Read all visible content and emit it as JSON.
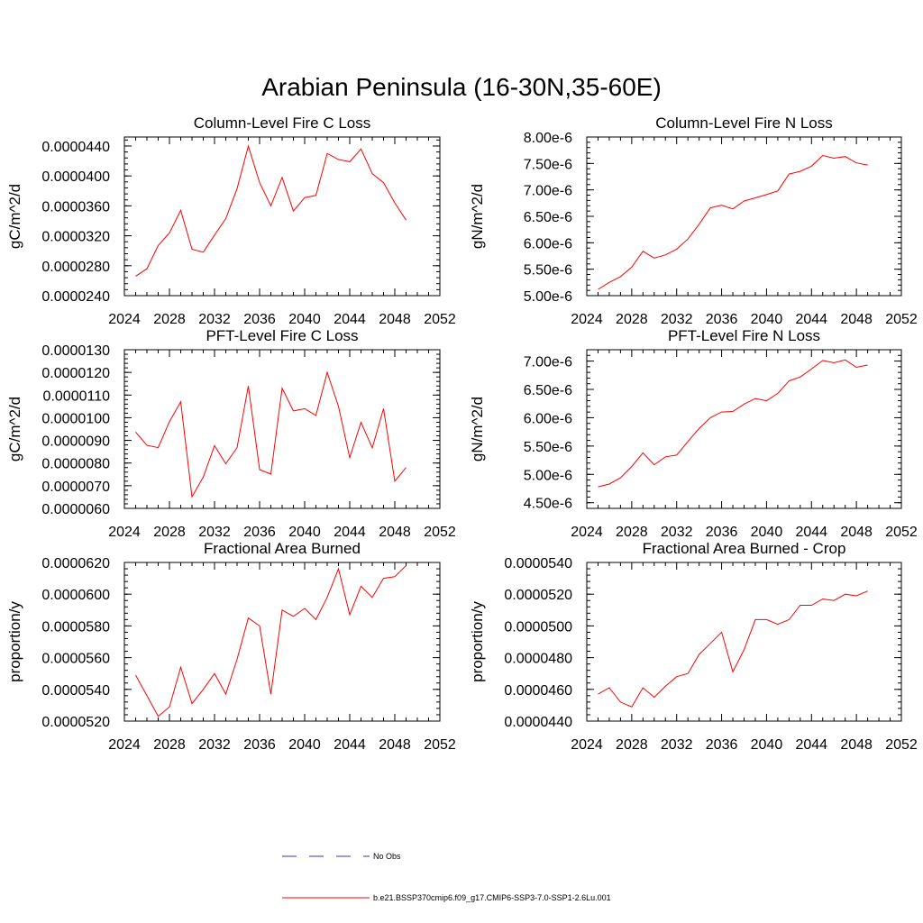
{
  "figure": {
    "title": "Arabian Peninsula (16-30N,35-60E)"
  },
  "colors": {
    "model_line": "#ff0000",
    "obs_line": "#3a3aa8",
    "axis": "#000000"
  },
  "legend": {
    "obs_label": "No Obs",
    "model_label": "b.e21.BSSP370cmip6.f09_g17.CMIP6-SSP3-7.0-SSP1-2.6Lu.001"
  },
  "chart_data": [
    {
      "type": "line",
      "title": "Column-Level Fire C Loss",
      "xlabel": "",
      "ylabel": "gC/m^2/d",
      "xlim": [
        2024,
        2052
      ],
      "ylim": [
        2.4e-05,
        4.52e-05
      ],
      "xticks": [
        2024,
        2028,
        2032,
        2036,
        2040,
        2044,
        2048,
        2052
      ],
      "xtick_labels": [
        "2024",
        "2028",
        "2032",
        "2036",
        "2040",
        "2044",
        "2048",
        "2052"
      ],
      "yticks": [
        2.4e-05,
        2.8e-05,
        3.2e-05,
        3.6e-05,
        4e-05,
        4.4e-05
      ],
      "ytick_labels": [
        "0.0000240",
        "0.0000280",
        "0.0000320",
        "0.0000360",
        "0.0000400",
        "0.0000440"
      ],
      "x": [
        2025,
        2026,
        2027,
        2028,
        2029,
        2030,
        2031,
        2032,
        2033,
        2034,
        2035,
        2036,
        2037,
        2038,
        2039,
        2040,
        2041,
        2042,
        2043,
        2044,
        2045,
        2046,
        2047,
        2048,
        2049
      ],
      "series": [
        {
          "values": [
            2.66e-05,
            2.76e-05,
            3.07e-05,
            3.24e-05,
            3.54e-05,
            3.02e-05,
            2.98e-05,
            3.21e-05,
            3.43e-05,
            3.83e-05,
            4.4e-05,
            3.91e-05,
            3.6e-05,
            3.98e-05,
            3.53e-05,
            3.71e-05,
            3.74e-05,
            4.3e-05,
            4.22e-05,
            4.19e-05,
            4.36e-05,
            4.03e-05,
            3.91e-05,
            3.64e-05,
            3.41e-05
          ]
        }
      ]
    },
    {
      "type": "line",
      "title": "Column-Level Fire N Loss",
      "xlabel": "",
      "ylabel": "gN/m^2/d",
      "xlim": [
        2024,
        2052
      ],
      "ylim": [
        5e-06,
        8e-06
      ],
      "xticks": [
        2024,
        2028,
        2032,
        2036,
        2040,
        2044,
        2048,
        2052
      ],
      "xtick_labels": [
        "2024",
        "2028",
        "2032",
        "2036",
        "2040",
        "2044",
        "2048",
        "2052"
      ],
      "yticks": [
        5e-06,
        5.5e-06,
        6e-06,
        6.5e-06,
        7e-06,
        7.5e-06,
        8e-06
      ],
      "ytick_labels": [
        "5.00e-6",
        "5.50e-6",
        "6.00e-6",
        "6.50e-6",
        "7.00e-6",
        "7.50e-6",
        "8.00e-6"
      ],
      "x": [
        2025,
        2026,
        2027,
        2028,
        2029,
        2030,
        2031,
        2032,
        2033,
        2034,
        2035,
        2036,
        2037,
        2038,
        2039,
        2040,
        2041,
        2042,
        2043,
        2044,
        2045,
        2046,
        2047,
        2048,
        2049
      ],
      "series": [
        {
          "values": [
            5.12e-06,
            5.25e-06,
            5.36e-06,
            5.54e-06,
            5.84e-06,
            5.71e-06,
            5.77e-06,
            5.88e-06,
            6.07e-06,
            6.35e-06,
            6.66e-06,
            6.71e-06,
            6.64e-06,
            6.79e-06,
            6.85e-06,
            6.91e-06,
            6.98e-06,
            7.3e-06,
            7.35e-06,
            7.45e-06,
            7.65e-06,
            7.6e-06,
            7.63e-06,
            7.51e-06,
            7.47e-06
          ]
        }
      ]
    },
    {
      "type": "line",
      "title": "PFT-Level Fire C Loss",
      "xlabel": "",
      "ylabel": "gC/m^2/d",
      "xlim": [
        2024,
        2052
      ],
      "ylim": [
        6e-06,
        1.3e-05
      ],
      "xticks": [
        2024,
        2028,
        2032,
        2036,
        2040,
        2044,
        2048,
        2052
      ],
      "xtick_labels": [
        "2024",
        "2028",
        "2032",
        "2036",
        "2040",
        "2044",
        "2048",
        "2052"
      ],
      "yticks": [
        6e-06,
        7e-06,
        8e-06,
        9e-06,
        1e-05,
        1.1e-05,
        1.2e-05,
        1.3e-05
      ],
      "ytick_labels": [
        "0.0000060",
        "0.0000070",
        "0.0000080",
        "0.0000090",
        "0.0000100",
        "0.0000110",
        "0.0000120",
        "0.0000130"
      ],
      "x": [
        2025,
        2026,
        2027,
        2028,
        2029,
        2030,
        2031,
        2032,
        2033,
        2034,
        2035,
        2036,
        2037,
        2038,
        2039,
        2040,
        2041,
        2042,
        2043,
        2044,
        2045,
        2046,
        2047,
        2048,
        2049
      ],
      "series": [
        {
          "values": [
            9.37e-06,
            8.78e-06,
            8.68e-06,
            9.83e-06,
            1.07e-05,
            6.51e-06,
            7.38e-06,
            8.77e-06,
            7.97e-06,
            8.68e-06,
            1.14e-05,
            7.71e-06,
            7.51e-06,
            1.13e-05,
            1.03e-05,
            1.04e-05,
            1.01e-05,
            1.2e-05,
            1.05e-05,
            8.24e-06,
            9.8e-06,
            8.67e-06,
            1.04e-05,
            7.2e-06,
            7.8e-06
          ]
        }
      ]
    },
    {
      "type": "line",
      "title": "PFT-Level Fire N Loss",
      "xlabel": "",
      "ylabel": "gN/m^2/d",
      "xlim": [
        2024,
        2052
      ],
      "ylim": [
        4.4e-06,
        7.2e-06
      ],
      "xticks": [
        2024,
        2028,
        2032,
        2036,
        2040,
        2044,
        2048,
        2052
      ],
      "xtick_labels": [
        "2024",
        "2028",
        "2032",
        "2036",
        "2040",
        "2044",
        "2048",
        "2052"
      ],
      "yticks": [
        4.5e-06,
        5e-06,
        5.5e-06,
        6e-06,
        6.5e-06,
        7e-06
      ],
      "ytick_labels": [
        "4.50e-6",
        "5.00e-6",
        "5.50e-6",
        "6.00e-6",
        "6.50e-6",
        "7.00e-6"
      ],
      "x": [
        2025,
        2026,
        2027,
        2028,
        2029,
        2030,
        2031,
        2032,
        2033,
        2034,
        2035,
        2036,
        2037,
        2038,
        2039,
        2040,
        2041,
        2042,
        2043,
        2044,
        2045,
        2046,
        2047,
        2048,
        2049
      ],
      "series": [
        {
          "values": [
            4.78e-06,
            4.83e-06,
            4.94e-06,
            5.14e-06,
            5.38e-06,
            5.17e-06,
            5.31e-06,
            5.34e-06,
            5.58e-06,
            5.81e-06,
            6e-06,
            6.1e-06,
            6.11e-06,
            6.24e-06,
            6.34e-06,
            6.3e-06,
            6.43e-06,
            6.65e-06,
            6.72e-06,
            6.86e-06,
            7.01e-06,
            6.97e-06,
            7.02e-06,
            6.89e-06,
            6.93e-06
          ]
        }
      ]
    },
    {
      "type": "line",
      "title": "Fractional Area Burned",
      "xlabel": "",
      "ylabel": "proportion/y",
      "xlim": [
        2024,
        2052
      ],
      "ylim": [
        5.2e-05,
        6.2e-05
      ],
      "xticks": [
        2024,
        2028,
        2032,
        2036,
        2040,
        2044,
        2048,
        2052
      ],
      "xtick_labels": [
        "2024",
        "2028",
        "2032",
        "2036",
        "2040",
        "2044",
        "2048",
        "2052"
      ],
      "yticks": [
        5.2e-05,
        5.4e-05,
        5.6e-05,
        5.8e-05,
        6e-05,
        6.2e-05
      ],
      "ytick_labels": [
        "0.0000520",
        "0.0000540",
        "0.0000560",
        "0.0000580",
        "0.0000600",
        "0.0000620"
      ],
      "x": [
        2025,
        2026,
        2027,
        2028,
        2029,
        2030,
        2031,
        2032,
        2033,
        2034,
        2035,
        2036,
        2037,
        2038,
        2039,
        2040,
        2041,
        2042,
        2043,
        2044,
        2045,
        2046,
        2047,
        2048,
        2049
      ],
      "series": [
        {
          "values": [
            5.49e-05,
            5.36e-05,
            5.23e-05,
            5.29e-05,
            5.54e-05,
            5.31e-05,
            5.4e-05,
            5.5e-05,
            5.37e-05,
            5.59e-05,
            5.85e-05,
            5.8e-05,
            5.37e-05,
            5.9e-05,
            5.86e-05,
            5.91e-05,
            5.84e-05,
            5.98e-05,
            6.16e-05,
            5.87e-05,
            6.05e-05,
            5.98e-05,
            6.1e-05,
            6.11e-05,
            6.18e-05
          ]
        }
      ]
    },
    {
      "type": "line",
      "title": "Fractional Area Burned - Crop",
      "xlabel": "",
      "ylabel": "proportion/y",
      "xlim": [
        2024,
        2052
      ],
      "ylim": [
        4.4e-05,
        5.4e-05
      ],
      "xticks": [
        2024,
        2028,
        2032,
        2036,
        2040,
        2044,
        2048,
        2052
      ],
      "xtick_labels": [
        "2024",
        "2028",
        "2032",
        "2036",
        "2040",
        "2044",
        "2048",
        "2052"
      ],
      "yticks": [
        4.4e-05,
        4.6e-05,
        4.8e-05,
        5e-05,
        5.2e-05,
        5.4e-05
      ],
      "ytick_labels": [
        "0.0000440",
        "0.0000460",
        "0.0000480",
        "0.0000500",
        "0.0000520",
        "0.0000540"
      ],
      "x": [
        2025,
        2026,
        2027,
        2028,
        2029,
        2030,
        2031,
        2032,
        2033,
        2034,
        2035,
        2036,
        2037,
        2038,
        2039,
        2040,
        2041,
        2042,
        2043,
        2044,
        2045,
        2046,
        2047,
        2048,
        2049
      ],
      "series": [
        {
          "values": [
            4.57e-05,
            4.61e-05,
            4.52e-05,
            4.49e-05,
            4.61e-05,
            4.55e-05,
            4.62e-05,
            4.68e-05,
            4.7e-05,
            4.82e-05,
            4.89e-05,
            4.96e-05,
            4.71e-05,
            4.85e-05,
            5.04e-05,
            5.04e-05,
            5.01e-05,
            5.04e-05,
            5.13e-05,
            5.13e-05,
            5.17e-05,
            5.16e-05,
            5.2e-05,
            5.19e-05,
            5.22e-05
          ]
        }
      ]
    }
  ]
}
